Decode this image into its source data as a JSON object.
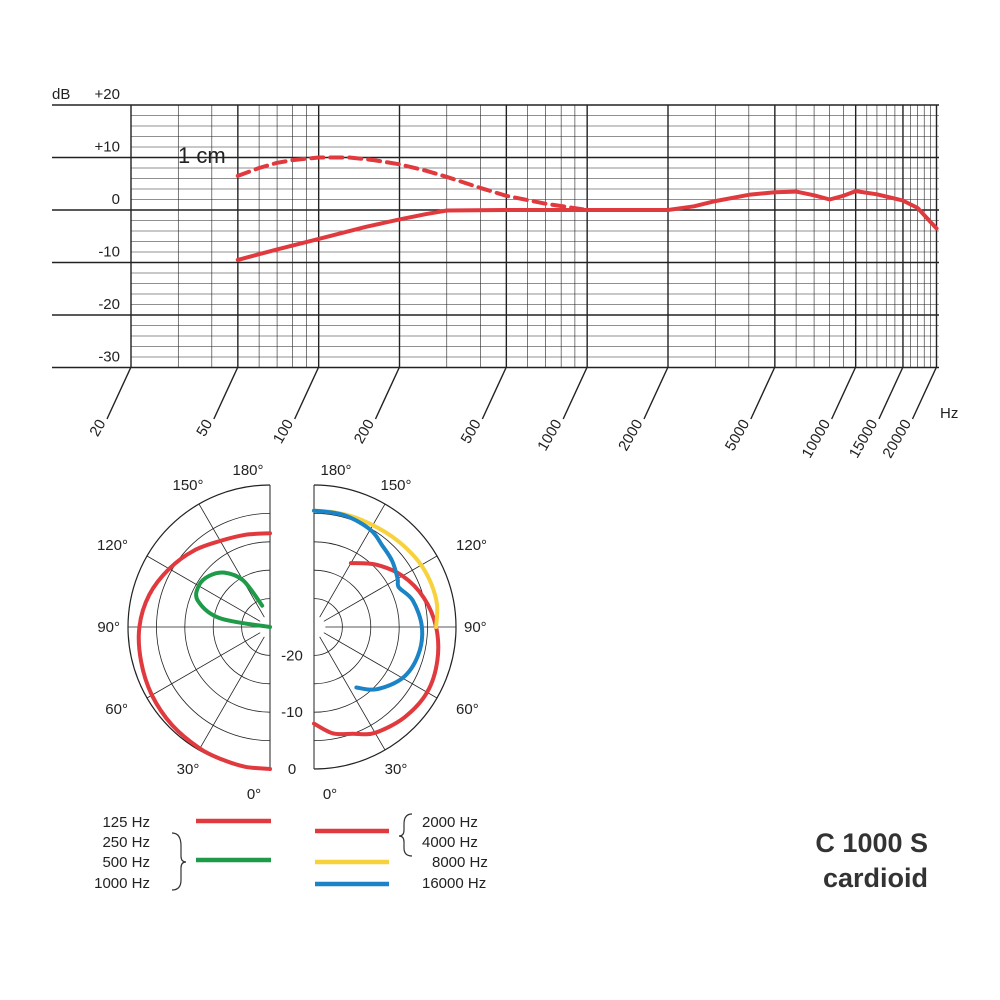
{
  "frequency_chart": {
    "y_unit": "dB",
    "y_ticks": [
      "+20",
      "+10",
      "0",
      "-10",
      "-20",
      "-30"
    ],
    "x_ticks": [
      "20",
      "50",
      "100",
      "200",
      "500",
      "1000",
      "2000",
      "5000",
      "10000",
      "15000",
      "20000"
    ],
    "x_unit": "Hz",
    "annotation": "1 cm"
  },
  "polar_chart": {
    "angle_labels_left": [
      "180°",
      "150°",
      "120°",
      "90°",
      "60°",
      "30°",
      "0°"
    ],
    "angle_labels_right": [
      "180°",
      "150°",
      "120°",
      "90°",
      "60°",
      "30°",
      "0°"
    ],
    "ring_labels": [
      "-20",
      "-10",
      "0"
    ]
  },
  "legend": {
    "left": [
      {
        "label": "125 Hz",
        "color": "#e0393e"
      },
      {
        "label": "250 Hz"
      },
      {
        "label": "500 Hz",
        "color": "#1e9a48"
      },
      {
        "label": "1000 Hz"
      }
    ],
    "right": [
      {
        "label": "2000 Hz",
        "color": "#e0393e"
      },
      {
        "label": "4000 Hz"
      },
      {
        "label": "8000 Hz",
        "color": "#f7d23c"
      },
      {
        "label": "16000 Hz",
        "color": "#1a84c6"
      }
    ]
  },
  "product": {
    "model": "C 1000 S",
    "pattern": "cardioid"
  },
  "chart_data": [
    {
      "type": "line",
      "xscale": "log",
      "xlim": [
        20,
        20000
      ],
      "ylim": [
        -30,
        20
      ],
      "ylabel": "dB",
      "xlabel": "Hz",
      "grid": true,
      "series": [
        {
          "name": "1 cm",
          "style": "dashed",
          "color": "#e0393e",
          "x": [
            50,
            60,
            70,
            80,
            100,
            130,
            160,
            200,
            250,
            300,
            400,
            500,
            700,
            1000
          ],
          "y": [
            6.5,
            8,
            9,
            9.5,
            10,
            10,
            9.5,
            8.7,
            7.5,
            6.3,
            4.2,
            2.7,
            1.2,
            0
          ]
        },
        {
          "style": "solid",
          "color": "#e0393e",
          "x": [
            50,
            70,
            100,
            150,
            200,
            250,
            300,
            500,
            1000,
            2000,
            2500,
            3000,
            4000,
            5000,
            6000,
            7000,
            8000,
            9000,
            10000,
            12000,
            15000,
            17000,
            20000
          ],
          "y": [
            -9.5,
            -7.5,
            -5.5,
            -3.2,
            -1.8,
            -0.8,
            -0.1,
            0,
            0,
            0,
            0.7,
            1.7,
            2.9,
            3.4,
            3.5,
            2.8,
            2,
            2.7,
            3.6,
            3,
            1.8,
            0.4,
            -3.5
          ]
        }
      ]
    },
    {
      "type": "polar",
      "angle_unit": "degrees",
      "radial_unit": "dB",
      "rlim": [
        -25,
        0
      ],
      "rings": [
        0,
        -5,
        -10,
        -15,
        -20,
        -25
      ],
      "series": [
        {
          "name": "125 Hz",
          "side": "left",
          "color": "#e0393e",
          "angles": [
            0,
            10,
            20,
            30,
            45,
            60,
            75,
            90,
            105,
            120,
            135,
            150,
            165,
            180
          ],
          "levels": [
            0,
            0,
            -0.2,
            -0.3,
            -0.6,
            -1,
            -1.5,
            -2,
            -3,
            -4.5,
            -6,
            -7.5,
            -8.2,
            -8.5
          ]
        },
        {
          "name": "500 Hz",
          "side": "left",
          "color": "#1e9a48",
          "angles": [
            90,
            100,
            110,
            120,
            130,
            140,
            150,
            160
          ],
          "levels": [
            -25,
            -16,
            -11.5,
            -10.5,
            -11,
            -12.5,
            -15.5,
            -21
          ]
        },
        {
          "name": "2000 Hz",
          "side": "right",
          "color": "#e0393e",
          "angles": [
            0,
            10,
            20,
            30,
            45,
            60,
            75,
            90,
            105,
            120,
            135,
            150
          ],
          "levels": [
            -8,
            -6,
            -5,
            -3.5,
            -2.5,
            -2,
            -2.5,
            -3.5,
            -5,
            -7,
            -9.5,
            -12
          ]
        },
        {
          "name": "8000 Hz",
          "side": "right",
          "color": "#f7d23c",
          "angles": [
            90,
            100,
            110,
            120,
            130,
            140,
            150,
            160,
            170,
            180
          ],
          "levels": [
            -3.5,
            -3,
            -3,
            -3.2,
            -3.6,
            -4,
            -4.3,
            -4.4,
            -4.5,
            -4.5
          ]
        },
        {
          "name": "16000 Hz",
          "side": "right",
          "color": "#1a84c6",
          "angles": [
            35,
            45,
            60,
            75,
            90,
            105,
            115,
            120,
            130,
            140,
            150,
            165,
            180
          ],
          "levels": [
            -12,
            -9.5,
            -7,
            -6,
            -6,
            -7,
            -8.5,
            -8,
            -7,
            -6.3,
            -5.2,
            -4.6,
            -4.5
          ]
        }
      ]
    }
  ]
}
